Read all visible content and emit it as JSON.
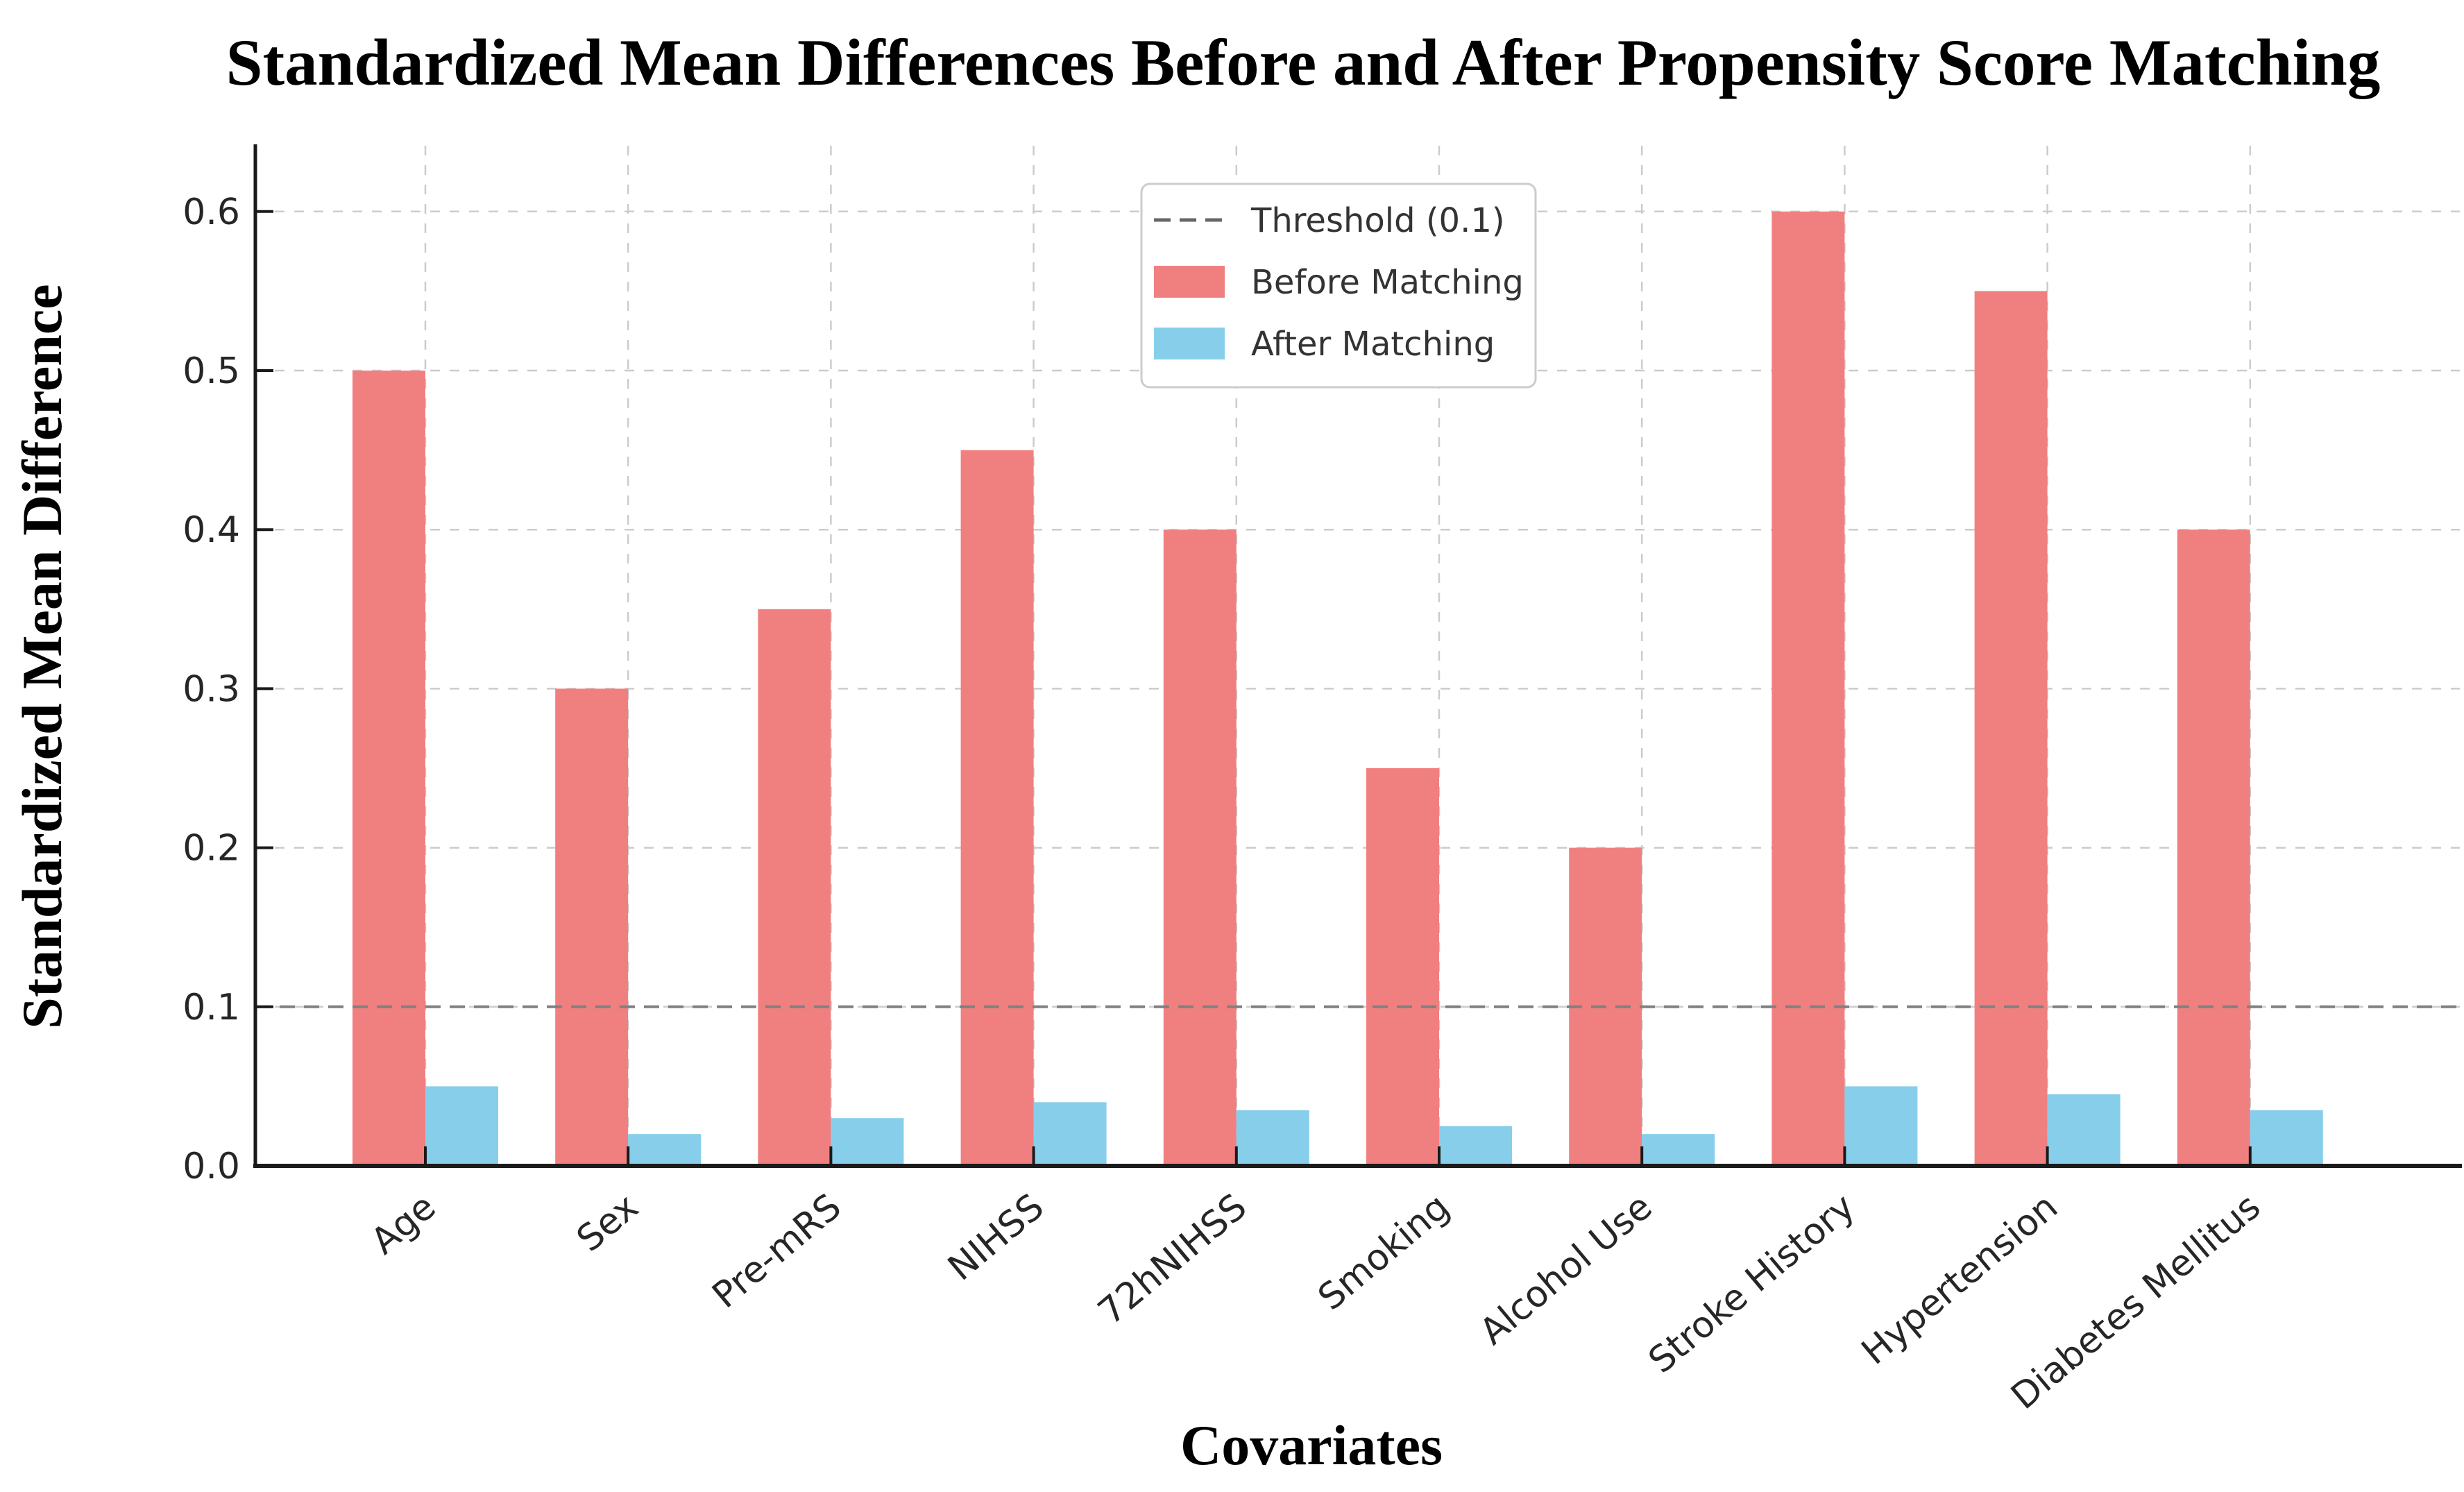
{
  "page": {
    "background": "#ffffff"
  },
  "chart_data": {
    "type": "bar",
    "title": "Standardized Mean Differences Before and After Propensity Score Matching",
    "xlabel": "Covariates",
    "ylabel": "Standardized Mean Difference",
    "categories": [
      "Age",
      "Sex",
      "Pre-mRS",
      "NIHSS",
      "72hNIHSS",
      "Smoking",
      "Alcohol Use",
      "Stroke History",
      "Hypertension",
      "Diabetes Mellitus"
    ],
    "series": [
      {
        "name": "Before Matching",
        "color": "#f08080",
        "values": [
          0.5,
          0.3,
          0.35,
          0.45,
          0.4,
          0.25,
          0.2,
          0.6,
          0.55,
          0.4
        ]
      },
      {
        "name": "After Matching",
        "color": "#87ceeb",
        "values": [
          0.05,
          0.02,
          0.03,
          0.04,
          0.035,
          0.025,
          0.02,
          0.05,
          0.045,
          0.035
        ]
      }
    ],
    "threshold": {
      "label": "Threshold (0.1)",
      "value": 0.1,
      "color": "#808080",
      "line_style": "dashed"
    },
    "y_ticks": [
      "0.0",
      "0.1",
      "0.2",
      "0.3",
      "0.4",
      "0.5",
      "0.6"
    ],
    "ylim": [
      0,
      0.64
    ],
    "grid": true,
    "grid_color": "#cccccc",
    "grid_style": "dashed",
    "axis_color": "#1a1a1a",
    "tick_label_color": "#262626",
    "legend_position": "upper center-left",
    "legend_border_color": "#cccccc",
    "x_tick_rotation_deg": 40
  }
}
